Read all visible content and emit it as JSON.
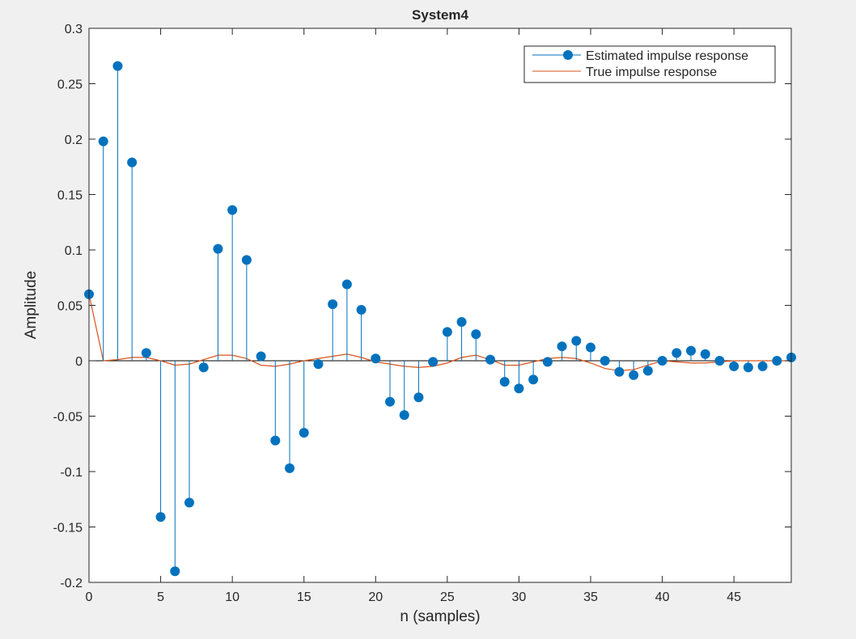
{
  "chart_data": {
    "type": "stem",
    "title": "System4",
    "xlabel": "n (samples)",
    "ylabel": "Amplitude",
    "xlim": [
      0,
      49
    ],
    "ylim": [
      -0.2,
      0.3
    ],
    "xticks": [
      "0",
      "5",
      "10",
      "15",
      "20",
      "25",
      "30",
      "35",
      "40",
      "45"
    ],
    "yticks": [
      "-0.2",
      "-0.15",
      "-0.1",
      "-0.05",
      "0",
      "0.05",
      "0.1",
      "0.15",
      "0.2",
      "0.25",
      "0.3"
    ],
    "grid": false,
    "legend_position": "top-right",
    "series": [
      {
        "name": "Estimated impulse response",
        "kind": "stem",
        "color": "#0072bd",
        "x": [
          0,
          1,
          2,
          3,
          4,
          5,
          6,
          7,
          8,
          9,
          10,
          11,
          12,
          13,
          14,
          15,
          16,
          17,
          18,
          19,
          20,
          21,
          22,
          23,
          24,
          25,
          26,
          27,
          28,
          29,
          30,
          31,
          32,
          33,
          34,
          35,
          36,
          37,
          38,
          39,
          40,
          41,
          42,
          43,
          44,
          45,
          46,
          47,
          48,
          49
        ],
        "y": [
          0.06,
          0.198,
          0.266,
          0.179,
          0.007,
          -0.141,
          -0.19,
          -0.128,
          -0.006,
          0.101,
          0.136,
          0.091,
          0.004,
          -0.072,
          -0.097,
          -0.065,
          -0.003,
          0.051,
          0.069,
          0.046,
          0.002,
          -0.037,
          -0.049,
          -0.033,
          -0.001,
          0.026,
          0.035,
          0.024,
          0.001,
          -0.019,
          -0.025,
          -0.017,
          -0.001,
          0.013,
          0.018,
          0.012,
          0.0,
          -0.01,
          -0.013,
          -0.009,
          0.0,
          0.007,
          0.009,
          0.006,
          0.0,
          -0.005,
          -0.006,
          -0.005,
          0.0,
          0.003
        ]
      },
      {
        "name": "True impulse response",
        "kind": "line",
        "color": "#d95319",
        "x": [
          0,
          1,
          2,
          3,
          4,
          5,
          6,
          7,
          8,
          9,
          10,
          11,
          12,
          13,
          14,
          15,
          16,
          17,
          18,
          19,
          20,
          21,
          22,
          23,
          24,
          25,
          26,
          27,
          28,
          29,
          30,
          31,
          32,
          33,
          34,
          35,
          36,
          37,
          38,
          39,
          40,
          41,
          42,
          43,
          44,
          45,
          46,
          47,
          48,
          49
        ],
        "y": [
          0.06,
          0.0,
          0.001,
          0.003,
          0.003,
          0.0,
          -0.004,
          -0.003,
          0.001,
          0.005,
          0.005,
          0.002,
          -0.004,
          -0.005,
          -0.003,
          0.0,
          0.002,
          0.004,
          0.006,
          0.003,
          -0.001,
          -0.003,
          -0.005,
          -0.006,
          -0.005,
          -0.002,
          0.003,
          0.005,
          0.001,
          -0.004,
          -0.004,
          -0.001,
          0.002,
          0.003,
          0.002,
          -0.002,
          -0.007,
          -0.009,
          -0.008,
          -0.004,
          0.0,
          -0.001,
          -0.002,
          -0.002,
          -0.001,
          0.0,
          0.0,
          0.0,
          0.0,
          0.0
        ]
      }
    ]
  }
}
